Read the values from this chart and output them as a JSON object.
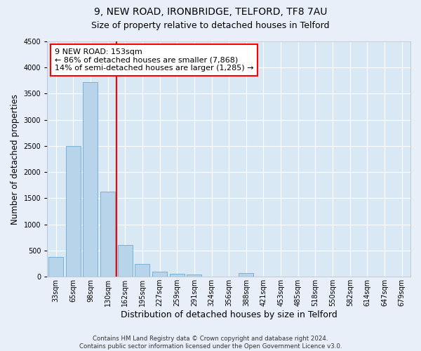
{
  "title1": "9, NEW ROAD, IRONBRIDGE, TELFORD, TF8 7AU",
  "title2": "Size of property relative to detached houses in Telford",
  "xlabel": "Distribution of detached houses by size in Telford",
  "ylabel": "Number of detached properties",
  "footer1": "Contains HM Land Registry data © Crown copyright and database right 2024.",
  "footer2": "Contains public sector information licensed under the Open Government Licence v3.0.",
  "categories": [
    "33sqm",
    "65sqm",
    "98sqm",
    "130sqm",
    "162sqm",
    "195sqm",
    "227sqm",
    "259sqm",
    "291sqm",
    "324sqm",
    "356sqm",
    "388sqm",
    "421sqm",
    "453sqm",
    "485sqm",
    "518sqm",
    "550sqm",
    "582sqm",
    "614sqm",
    "647sqm",
    "679sqm"
  ],
  "values": [
    380,
    2500,
    3720,
    1630,
    600,
    245,
    100,
    55,
    40,
    0,
    0,
    65,
    0,
    0,
    0,
    0,
    0,
    0,
    0,
    0,
    0
  ],
  "bar_color": "#b8d4ea",
  "bar_edgecolor": "#6aaad4",
  "vline_pos": 3.5,
  "vline_color": "red",
  "annotation_text": "9 NEW ROAD: 153sqm\n← 86% of detached houses are smaller (7,868)\n14% of semi-detached houses are larger (1,285) →",
  "annotation_box_facecolor": "white",
  "annotation_box_edgecolor": "red",
  "ylim": [
    0,
    4500
  ],
  "yticks": [
    0,
    500,
    1000,
    1500,
    2000,
    2500,
    3000,
    3500,
    4000,
    4500
  ],
  "bg_color": "#e8eff8",
  "plot_bg_color": "#d8e8f4",
  "title1_fontsize": 10,
  "title2_fontsize": 9,
  "tick_fontsize": 7,
  "ylabel_fontsize": 8.5,
  "xlabel_fontsize": 9,
  "annotation_fontsize": 8
}
